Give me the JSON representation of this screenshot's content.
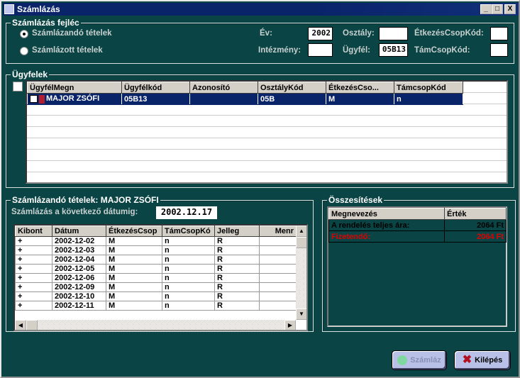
{
  "window": {
    "title": "Számlázás",
    "controls": [
      "_",
      "□",
      "X"
    ]
  },
  "header": {
    "legend": "Számlázás fejléc",
    "radios": [
      {
        "label": "Számlázandó tételek",
        "selected": true
      },
      {
        "label": "Számlázott tételek",
        "selected": false
      }
    ],
    "fields": {
      "ev": {
        "label": "Év:",
        "value": "2002"
      },
      "osztaly": {
        "label": "Osztály:",
        "value": ""
      },
      "etkezes": {
        "label": "ÉtkezésCsopKód:",
        "value": ""
      },
      "intezmeny": {
        "label": "Intézmény:",
        "value": ""
      },
      "ugyfel": {
        "label": "Ügyfél:",
        "value": "05B13"
      },
      "tamcsop": {
        "label": "TámCsopKód:",
        "value": ""
      }
    }
  },
  "clients": {
    "legend": "Ügyfelek",
    "columns": [
      "ÜgyfélMegn",
      "Ügyfélkód",
      "Azonosító",
      "OsztályKód",
      "ÉtkezésCso...",
      "TámcsopKód",
      ""
    ],
    "rows": [
      [
        "MAJOR ZSÓFI",
        "05B13",
        "",
        "05B",
        "M",
        "n",
        ""
      ]
    ]
  },
  "items": {
    "legend": "Számlázandó tételek: MAJOR ZSÓFI",
    "date_label": "Számlázás a következő dátumig:",
    "date_value": "2002.12.17",
    "columns": [
      "Kibont",
      "Dátum",
      "ÉtkezésCsop",
      "TámCsopKó",
      "Jelleg",
      "Menr"
    ],
    "rows": [
      [
        "+",
        "2002-12-02",
        "M",
        "n",
        "R",
        ""
      ],
      [
        "+",
        "2002-12-03",
        "M",
        "n",
        "R",
        ""
      ],
      [
        "+",
        "2002-12-04",
        "M",
        "n",
        "R",
        ""
      ],
      [
        "+",
        "2002-12-05",
        "M",
        "n",
        "R",
        ""
      ],
      [
        "+",
        "2002-12-06",
        "M",
        "n",
        "R",
        ""
      ],
      [
        "+",
        "2002-12-09",
        "M",
        "n",
        "R",
        ""
      ],
      [
        "+",
        "2002-12-10",
        "M",
        "n",
        "R",
        ""
      ],
      [
        "+",
        "2002-12-11",
        "M",
        "n",
        "R",
        ""
      ]
    ]
  },
  "summary": {
    "legend": "Összesítések",
    "columns": [
      "Megnevezés",
      "Érték"
    ],
    "rows": [
      {
        "name": "A rendelés teljes ára:",
        "value": "2064 Ft",
        "color": "#000000"
      },
      {
        "name": "Fizetendő:",
        "value": "2064 Ft",
        "color": "#e00000"
      }
    ]
  },
  "buttons": {
    "szamlaz": "Számláz",
    "kilepes": "Kilépés"
  }
}
